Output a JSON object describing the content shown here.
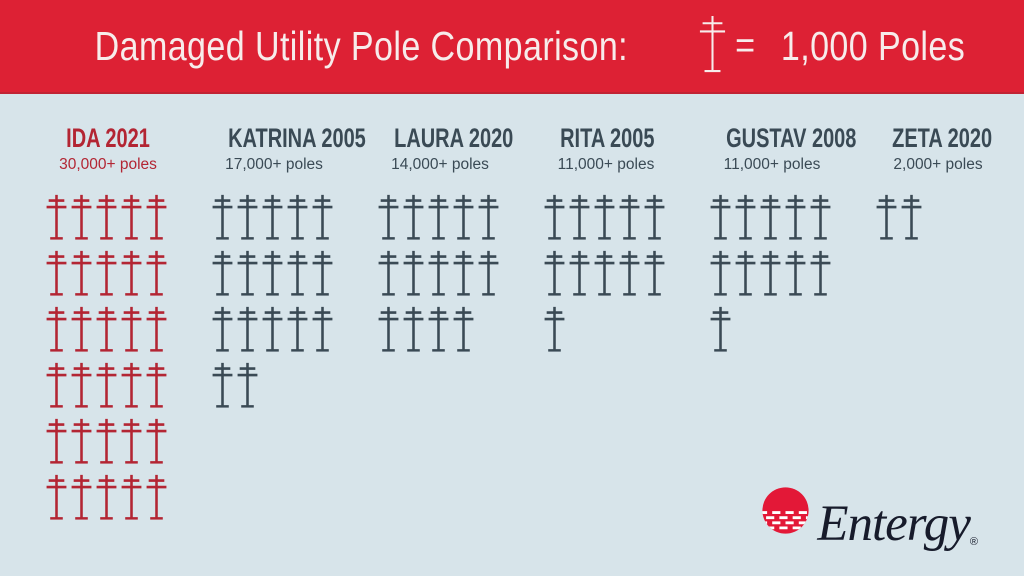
{
  "header": {
    "title": "Damaged Utility Pole Comparison:",
    "equals": "=",
    "legend_value": "1,000 Poles"
  },
  "columns": [
    {
      "name": "IDA 2021",
      "subtitle": "30,000+ poles",
      "icons": 30,
      "color": "#B32533"
    },
    {
      "name": "KATRINA 2005",
      "subtitle": "17,000+ poles",
      "icons": 17,
      "color": "#3A4A55"
    },
    {
      "name": "LAURA 2020",
      "subtitle": "14,000+ poles",
      "icons": 14,
      "color": "#3A4A55"
    },
    {
      "name": "RITA 2005",
      "subtitle": "11,000+ poles",
      "icons": 11,
      "color": "#3A4A55"
    },
    {
      "name": "GUSTAV 2008",
      "subtitle": "11,000+ poles",
      "icons": 11,
      "color": "#3A4A55"
    },
    {
      "name": "ZETA 2020",
      "subtitle": "2,000+ poles",
      "icons": 2,
      "color": "#3A4A55"
    }
  ],
  "logo": {
    "brand": "Entergy",
    "registered": "®"
  },
  "colors": {
    "banner_red": "#DD2134",
    "banner_text": "#F7ECEB",
    "background": "#D7E4EA",
    "ida_red": "#B32533",
    "slate": "#3A4A55",
    "logo_red": "#E31837",
    "wordmark": "#171B2B"
  },
  "chart_data": {
    "type": "bar",
    "style": "pictogram",
    "title": "Damaged Utility Pole Comparison",
    "legend": "1 pole icon = 1,000 Poles",
    "icon_unit": 1000,
    "categories": [
      "IDA 2021",
      "KATRINA 2005",
      "LAURA 2020",
      "RITA 2005",
      "GUSTAV 2008",
      "ZETA 2020"
    ],
    "values": [
      30000,
      17000,
      14000,
      11000,
      11000,
      2000
    ],
    "value_labels": [
      "30,000+ poles",
      "17,000+ poles",
      "14,000+ poles",
      "11,000+ poles",
      "11,000+ poles",
      "2,000+ poles"
    ],
    "icon_counts": [
      30,
      17,
      14,
      11,
      11,
      2
    ],
    "icons_per_row": 5,
    "highlighted_category": "IDA 2021"
  }
}
